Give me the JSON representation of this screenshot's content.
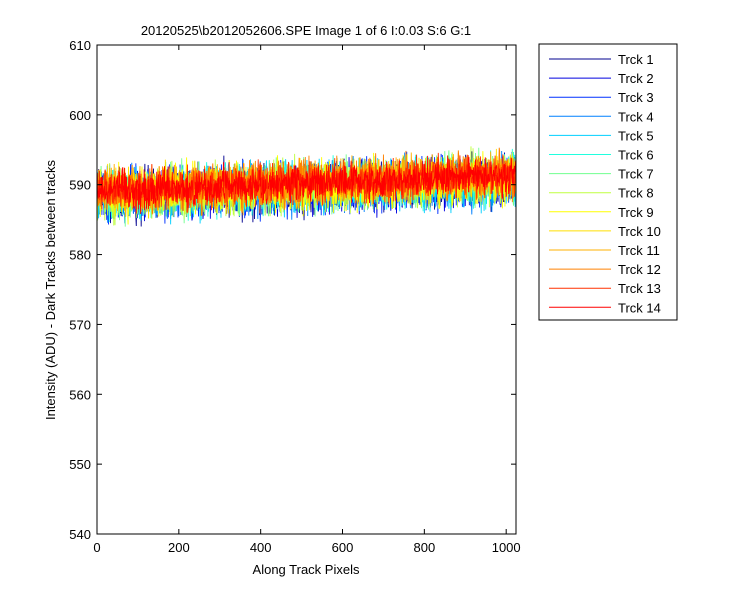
{
  "chart_data": {
    "type": "line",
    "title": "20120525\\b2012052606.SPE  Image 1 of 6  I:0.03  S:6  G:1",
    "xlabel": "Along Track Pixels",
    "ylabel": "Intensity (ADU) - Dark Tracks between tracks",
    "xlim": [
      0,
      1024
    ],
    "ylim": [
      540,
      610
    ],
    "xticks": [
      0,
      200,
      400,
      600,
      800,
      1000
    ],
    "yticks": [
      540,
      550,
      560,
      570,
      580,
      590,
      600,
      610
    ],
    "grid": false,
    "legend_position": "outside-right",
    "x_points": 1024,
    "series": [
      {
        "name": "Trck 1",
        "color": "#00008f",
        "baseline_start": 588.5,
        "baseline_end": 590.5,
        "spread": 4.0
      },
      {
        "name": "Trck 2",
        "color": "#0000df",
        "baseline_start": 588.5,
        "baseline_end": 590.5,
        "spread": 4.0
      },
      {
        "name": "Trck 3",
        "color": "#0030ff",
        "baseline_start": 588.5,
        "baseline_end": 590.5,
        "spread": 4.0
      },
      {
        "name": "Trck 4",
        "color": "#0080ff",
        "baseline_start": 588.5,
        "baseline_end": 590.5,
        "spread": 4.0
      },
      {
        "name": "Trck 5",
        "color": "#00cfff",
        "baseline_start": 588.5,
        "baseline_end": 590.5,
        "spread": 4.0
      },
      {
        "name": "Trck 6",
        "color": "#20ffdf",
        "baseline_start": 588.5,
        "baseline_end": 591.0,
        "spread": 4.0
      },
      {
        "name": "Trck 7",
        "color": "#70ff8f",
        "baseline_start": 588.5,
        "baseline_end": 591.0,
        "spread": 4.0
      },
      {
        "name": "Trck 8",
        "color": "#bfff40",
        "baseline_start": 588.5,
        "baseline_end": 591.0,
        "spread": 4.0
      },
      {
        "name": "Trck 9",
        "color": "#ffff00",
        "baseline_start": 589.0,
        "baseline_end": 591.0,
        "spread": 4.0
      },
      {
        "name": "Trck 10",
        "color": "#ffdf00",
        "baseline_start": 589.0,
        "baseline_end": 591.0,
        "spread": 3.5
      },
      {
        "name": "Trck 11",
        "color": "#ffb000",
        "baseline_start": 589.0,
        "baseline_end": 591.5,
        "spread": 3.5
      },
      {
        "name": "Trck 12",
        "color": "#ff8000",
        "baseline_start": 589.0,
        "baseline_end": 591.5,
        "spread": 3.5
      },
      {
        "name": "Trck 13",
        "color": "#ff3000",
        "baseline_start": 589.0,
        "baseline_end": 591.5,
        "spread": 3.2
      },
      {
        "name": "Trck 14",
        "color": "#ff0000",
        "baseline_start": 589.0,
        "baseline_end": 591.5,
        "spread": 3.0
      }
    ]
  }
}
